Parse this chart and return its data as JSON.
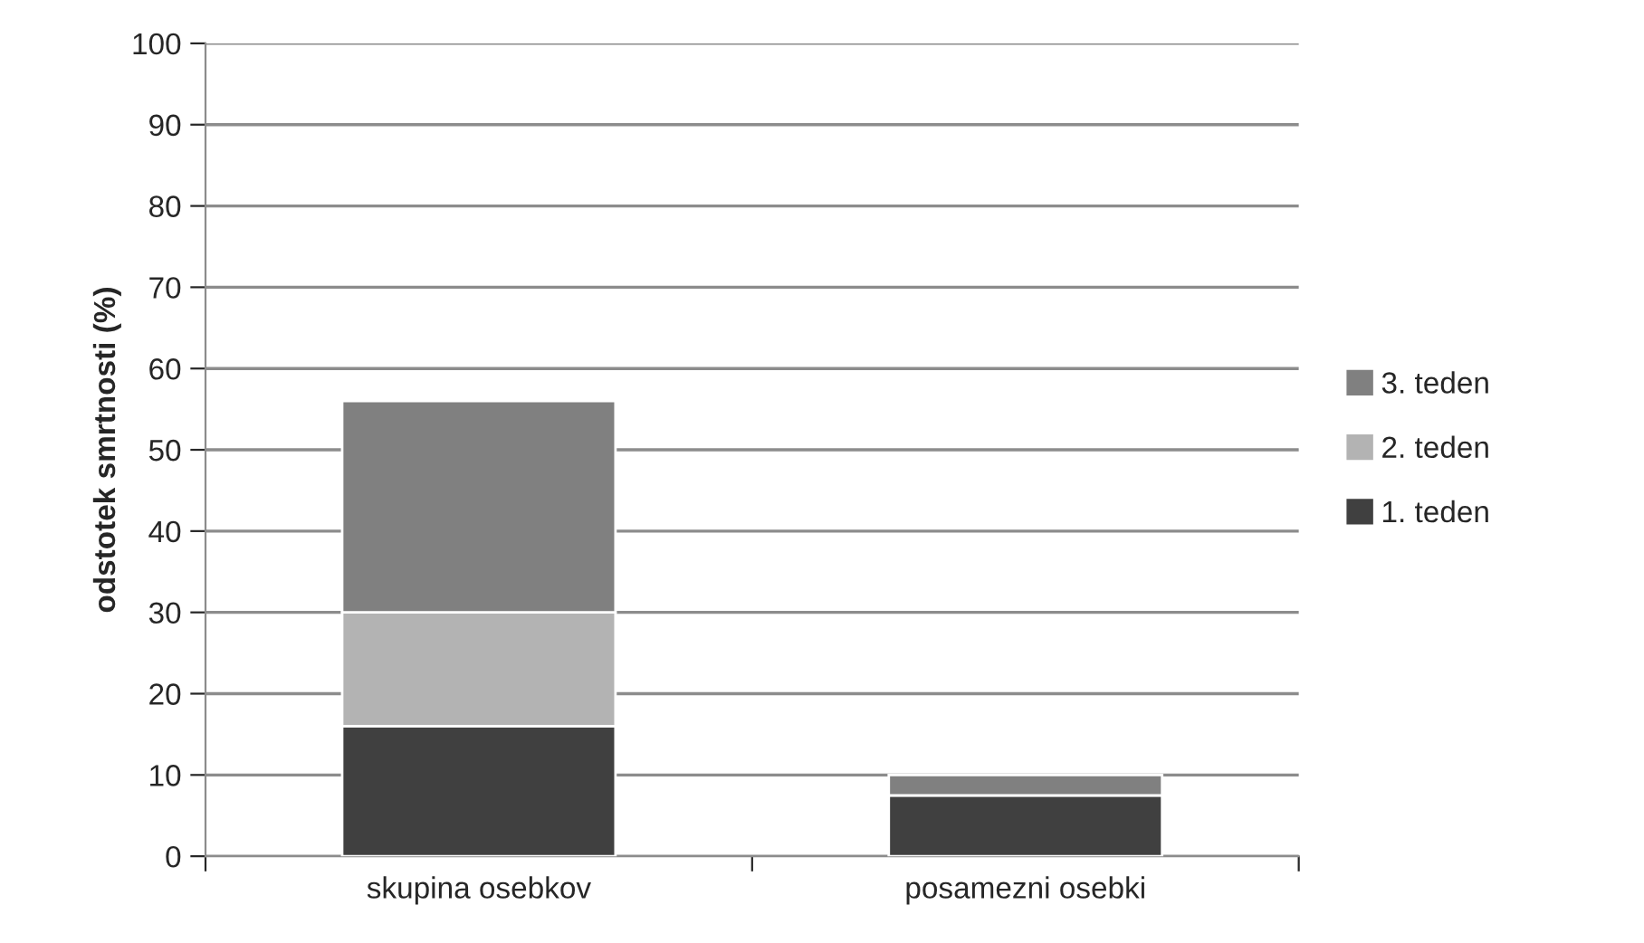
{
  "chart_data": {
    "type": "bar",
    "stacked": true,
    "ylabel": "odstotek smrtnosti (%)",
    "categories": [
      "skupina osebkov",
      "posamezni osebki"
    ],
    "series": [
      {
        "name": "1. teden",
        "color": "#404040",
        "values": [
          16,
          7.5
        ]
      },
      {
        "name": "2. teden",
        "color": "#b3b3b3",
        "values": [
          14,
          0
        ]
      },
      {
        "name": "3. teden",
        "color": "#808080",
        "values": [
          26,
          2.5
        ]
      }
    ],
    "ylim": [
      0,
      100
    ],
    "yticks": [
      0,
      10,
      20,
      30,
      40,
      50,
      60,
      70,
      80,
      90,
      100
    ],
    "grid": "y",
    "legend": "right"
  }
}
